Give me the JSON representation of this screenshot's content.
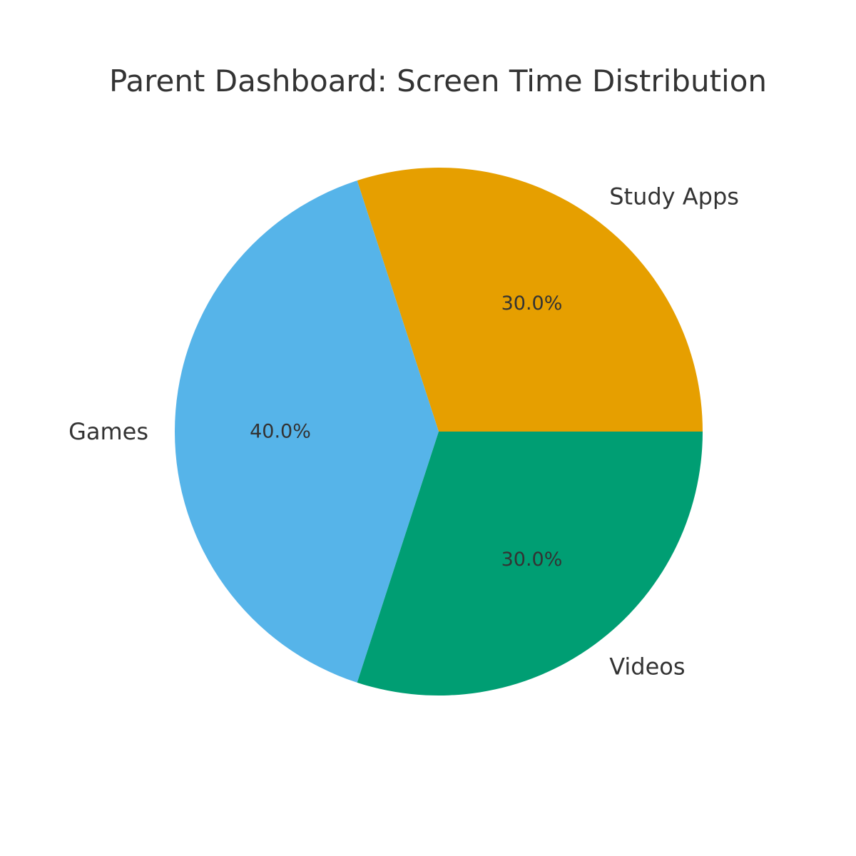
{
  "chart_data": {
    "type": "pie",
    "title": "Parent Dashboard: Screen Time Distribution",
    "slices": [
      {
        "label": "Study Apps",
        "value": 30.0,
        "pct_label": "30.0%",
        "color": "#E69F00"
      },
      {
        "label": "Games",
        "value": 40.0,
        "pct_label": "40.0%",
        "color": "#56B4E9"
      },
      {
        "label": "Videos",
        "value": 30.0,
        "pct_label": "30.0%",
        "color": "#009E73"
      }
    ],
    "start_angle_deg": 0,
    "direction": "counterclockwise",
    "legend": "none"
  }
}
